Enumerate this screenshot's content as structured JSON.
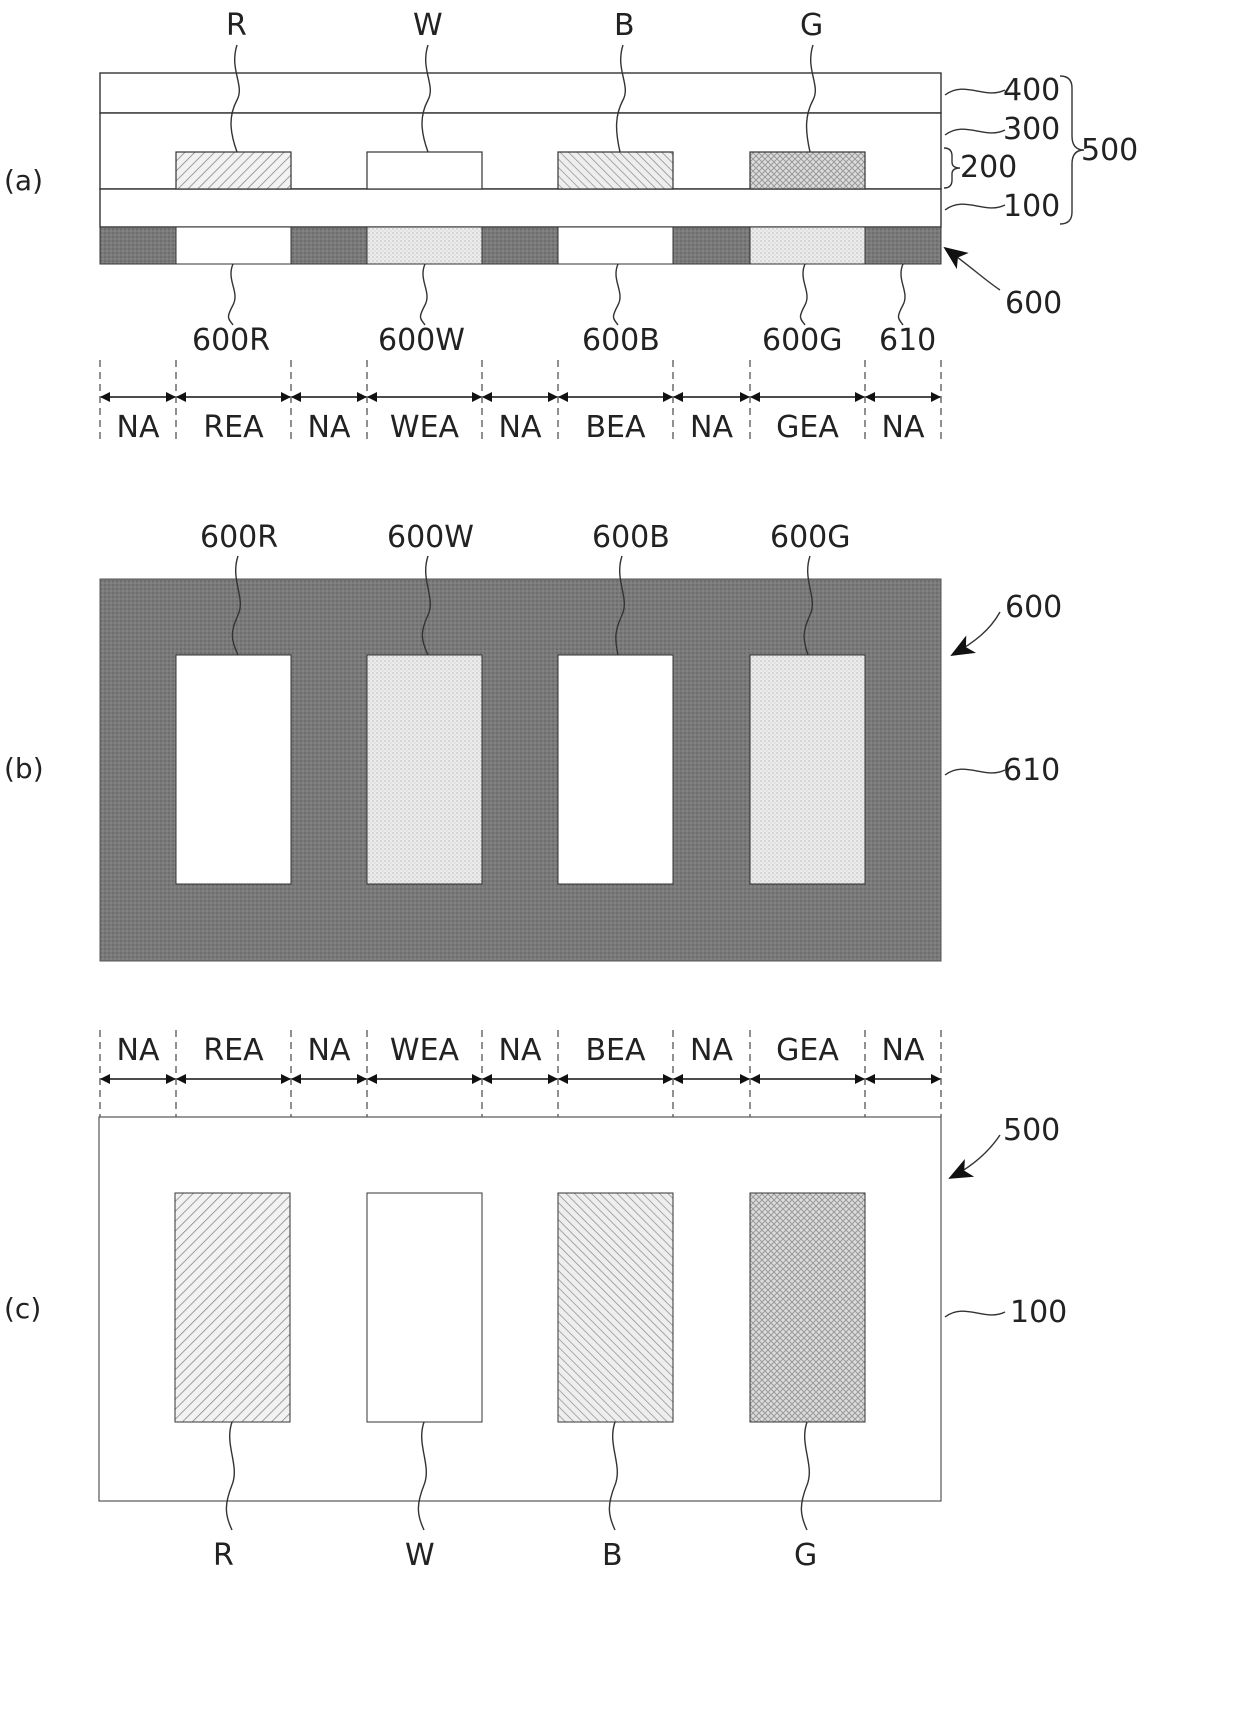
{
  "panels": {
    "a": "(a)",
    "b": "(b)",
    "c": "(c)"
  },
  "subpixels": [
    "R",
    "W",
    "B",
    "G"
  ],
  "layers": {
    "l400": "400",
    "l300": "300",
    "l200": "200",
    "l100": "100",
    "l500": "500"
  },
  "filter": {
    "main": "600",
    "black_matrix": "610",
    "openings": [
      "600R",
      "600W",
      "600B",
      "600G"
    ]
  },
  "regions": [
    "NA",
    "REA",
    "NA",
    "WEA",
    "NA",
    "BEA",
    "NA",
    "GEA",
    "NA"
  ],
  "colors": {
    "black_matrix": "#7a7a7a",
    "stipple": "#e6e6e6",
    "line": "#333333"
  }
}
